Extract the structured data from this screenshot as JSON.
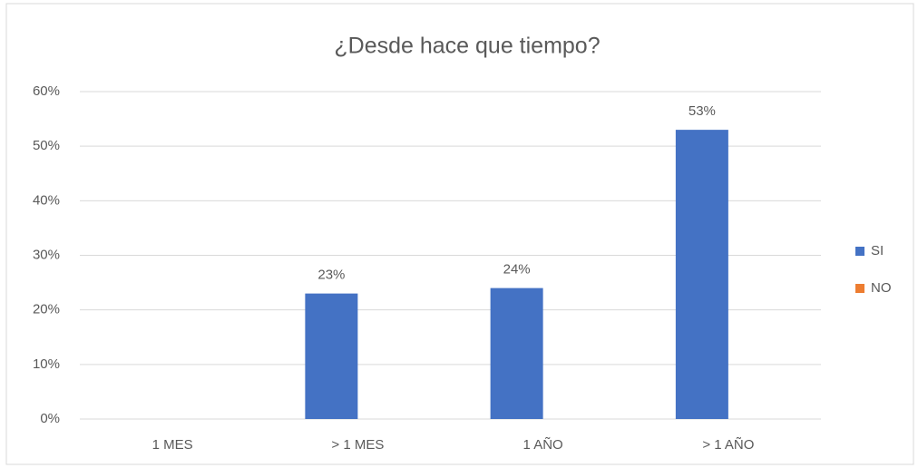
{
  "chart_data": {
    "type": "bar",
    "title": "¿Desde hace que tiempo?",
    "categories": [
      "1 MES",
      "> 1 MES",
      "1 AÑO",
      "> 1 AÑO"
    ],
    "series": [
      {
        "name": "SI",
        "color": "#4472c4",
        "values": [
          null,
          23,
          24,
          53
        ],
        "value_labels": [
          null,
          "23%",
          "24%",
          "53%"
        ]
      },
      {
        "name": "NO",
        "color": "#ed7d31",
        "values": [
          null,
          null,
          null,
          null
        ]
      }
    ],
    "ylim": [
      0,
      60
    ],
    "yticks": [
      {
        "value": 0,
        "label": "0%"
      },
      {
        "value": 10,
        "label": "10%"
      },
      {
        "value": 20,
        "label": "20%"
      },
      {
        "value": 30,
        "label": "30%"
      },
      {
        "value": 40,
        "label": "40%"
      },
      {
        "value": 50,
        "label": "50%"
      },
      {
        "value": 60,
        "label": "60%"
      }
    ],
    "grid": true,
    "legend": "right"
  }
}
